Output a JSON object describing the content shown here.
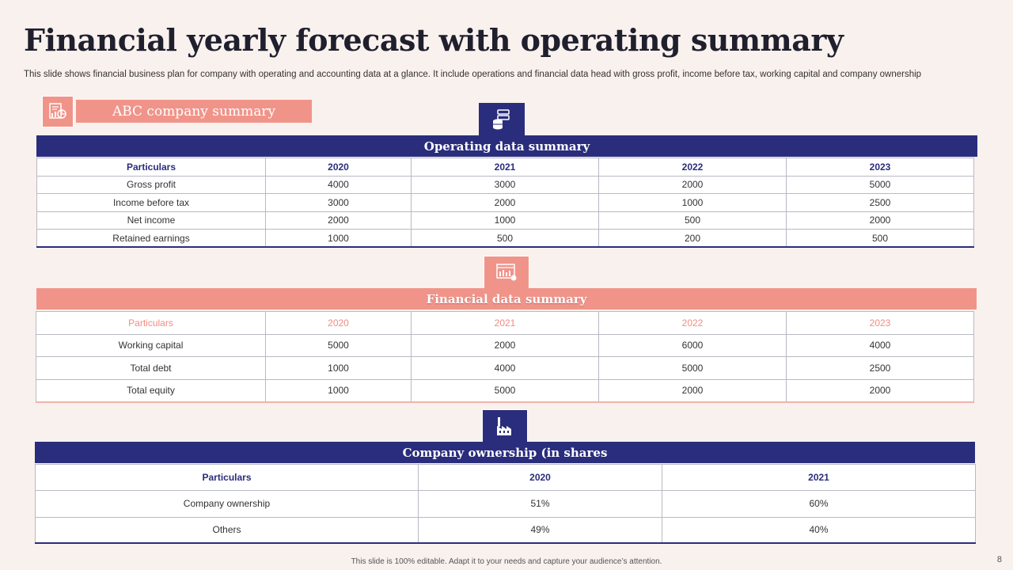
{
  "title": "Financial yearly forecast with operating summary",
  "subtitle": "This slide shows financial business plan for company with operating and accounting data at a glance. It include operations and financial data head with gross profit, income before tax, working capital and company ownership",
  "abc_label": "ABC company summary",
  "operating": {
    "heading": "Operating data summary",
    "icon": "database-icon",
    "headers": [
      "Particulars",
      "2020",
      "2021",
      "2022",
      "2023"
    ],
    "rows": [
      [
        "Gross profit",
        "4000",
        "3000",
        "2000",
        "5000"
      ],
      [
        "Income before tax",
        "3000",
        "2000",
        "1000",
        "2500"
      ],
      [
        "Net income",
        "2000",
        "1000",
        "500",
        "2000"
      ],
      [
        "Retained earnings",
        "1000",
        "500",
        "200",
        "500"
      ]
    ]
  },
  "financial": {
    "heading": "Financial data summary",
    "icon": "bar-chart-report-icon",
    "headers": [
      "Particulars",
      "2020",
      "2021",
      "2022",
      "2023"
    ],
    "rows": [
      [
        "Working capital",
        "5000",
        "2000",
        "6000",
        "4000"
      ],
      [
        "Total debt",
        "1000",
        "4000",
        "5000",
        "2500"
      ],
      [
        "Total equity",
        "1000",
        "5000",
        "2000",
        "2000"
      ]
    ]
  },
  "ownership": {
    "heading": "Company ownership (in shares",
    "icon": "factory-icon",
    "headers": [
      "Particulars",
      "2020",
      "2021"
    ],
    "rows": [
      [
        "Company ownership",
        "51%",
        "60%"
      ],
      [
        "Others",
        "49%",
        "40%"
      ]
    ]
  },
  "footer": "This slide is 100% editable. Adapt it to your needs and capture your audience’s attention.",
  "page_number": "8",
  "colors": {
    "navy": "#2a2d7c",
    "salmon": "#f0948a",
    "background": "#f9f1ed"
  }
}
